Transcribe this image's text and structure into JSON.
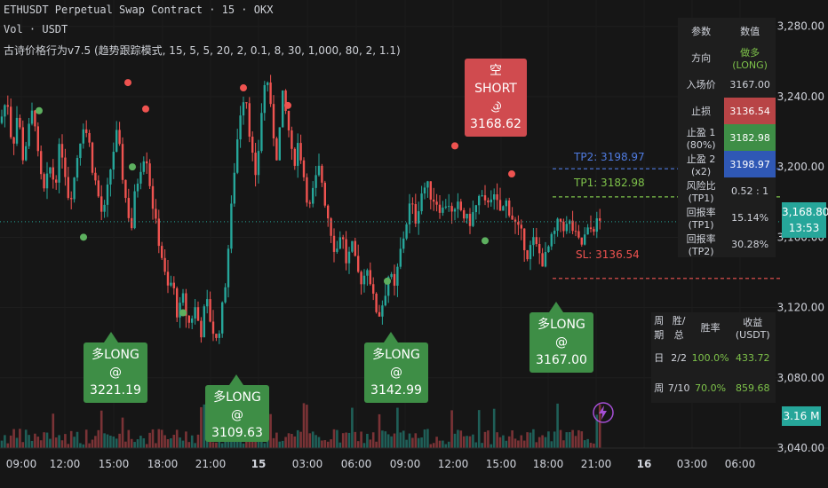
{
  "header": {
    "line1": "ETHUSDT Perpetual Swap Contract · 15 · OKX",
    "line2": "Vol · USDT",
    "line3": "古诗价格行为v7.5 (趋势跟踪模式, 15, 5, 5, 20, 2, 0.1, 8, 30, 1,000, 80, 2, 1.1)"
  },
  "signals": {
    "short": {
      "label": "空SHORT",
      "price": "@ 3168.62"
    },
    "long1": {
      "label": "多LONG",
      "price": "@ 3221.19"
    },
    "long2": {
      "label": "多LONG",
      "price": "@ 3109.63"
    },
    "long3": {
      "label": "多LONG",
      "price": "@ 3142.99"
    },
    "long4": {
      "label": "多LONG",
      "price": "@ 3167.00"
    }
  },
  "levels": {
    "tp2": "TP2: 3198.97",
    "tp1": "TP1: 3182.98",
    "sl": "SL: 3136.54"
  },
  "price_tag": {
    "price": "3,168.80",
    "countdown": "13:53"
  },
  "volume_tag": "3.16 M",
  "params_table": {
    "header": [
      "参数",
      "数值"
    ],
    "rows": [
      {
        "k": "方向",
        "v": "做多 (LONG)"
      },
      {
        "k": "入场价",
        "v": "3167.00"
      },
      {
        "k": "止损",
        "v": "3136.54"
      },
      {
        "k": "止盈 1 (80%)",
        "v": "3182.98"
      },
      {
        "k": "止盈 2 (x2)",
        "v": "3198.97"
      },
      {
        "k": "风险比 (TP1)",
        "v": "0.52 : 1"
      },
      {
        "k": "回报率 (TP1)",
        "v": "15.14%"
      },
      {
        "k": "回报率 (TP2)",
        "v": "30.28%"
      }
    ]
  },
  "stats_table": {
    "header": [
      "周期",
      "胜/总",
      "胜率",
      "收益 (USDT)"
    ],
    "rows": [
      {
        "p": "日",
        "w": "2/2",
        "r": "100.0%",
        "g": "433.72"
      },
      {
        "p": "周",
        "w": "7/10",
        "r": "70.0%",
        "g": "859.68"
      }
    ]
  },
  "colors": {
    "up": "#26a69a",
    "down": "#ef5350",
    "long": "#3e8e46",
    "short": "#d04b4f",
    "tp2": "#4f7be0",
    "tp1": "#7ec24a",
    "sl": "#ef5350",
    "last": "#26a69a"
  },
  "chart_data": {
    "type": "candlestick",
    "ylim": [
      3040,
      3295
    ],
    "y_ticks": [
      "3,280.00",
      "3,240.00",
      "3,200.00",
      "3,160.00",
      "3,120.00",
      "3,080.00",
      "3,040.00"
    ],
    "x_ticks": [
      "09:00",
      "12:00",
      "15:00",
      "18:00",
      "21:00",
      "15",
      "03:00",
      "06:00",
      "09:00",
      "12:00",
      "15:00",
      "18:00",
      "21:00",
      "16",
      "03:00",
      "06:00"
    ],
    "close_path": [
      [
        0,
        3225
      ],
      [
        8,
        3240
      ],
      [
        14,
        3210
      ],
      [
        20,
        3232
      ],
      [
        26,
        3205
      ],
      [
        32,
        3220
      ],
      [
        38,
        3235
      ],
      [
        44,
        3198
      ],
      [
        50,
        3185
      ],
      [
        56,
        3200
      ],
      [
        62,
        3190
      ],
      [
        68,
        3215
      ],
      [
        74,
        3195
      ],
      [
        78,
        3180
      ],
      [
        84,
        3195
      ],
      [
        88,
        3210
      ],
      [
        94,
        3225
      ],
      [
        100,
        3215
      ],
      [
        104,
        3200
      ],
      [
        110,
        3185
      ],
      [
        116,
        3170
      ],
      [
        122,
        3190
      ],
      [
        126,
        3205
      ],
      [
        132,
        3220
      ],
      [
        138,
        3195
      ],
      [
        142,
        3180
      ],
      [
        148,
        3165
      ],
      [
        152,
        3185
      ],
      [
        158,
        3200
      ],
      [
        164,
        3210
      ],
      [
        170,
        3185
      ],
      [
        176,
        3165
      ],
      [
        182,
        3150
      ],
      [
        188,
        3130
      ],
      [
        194,
        3135
      ],
      [
        200,
        3115
      ],
      [
        206,
        3125
      ],
      [
        212,
        3110
      ],
      [
        220,
        3120
      ],
      [
        226,
        3105
      ],
      [
        232,
        3125
      ],
      [
        238,
        3110
      ],
      [
        244,
        3100
      ],
      [
        252,
        3125
      ],
      [
        258,
        3160
      ],
      [
        264,
        3200
      ],
      [
        270,
        3230
      ],
      [
        276,
        3245
      ],
      [
        282,
        3215
      ],
      [
        288,
        3190
      ],
      [
        294,
        3230
      ],
      [
        300,
        3255
      ],
      [
        306,
        3225
      ],
      [
        312,
        3205
      ],
      [
        318,
        3240
      ],
      [
        324,
        3225
      ],
      [
        330,
        3200
      ],
      [
        336,
        3215
      ],
      [
        342,
        3195
      ],
      [
        348,
        3175
      ],
      [
        354,
        3190
      ],
      [
        360,
        3200
      ],
      [
        366,
        3180
      ],
      [
        372,
        3165
      ],
      [
        378,
        3150
      ],
      [
        384,
        3165
      ],
      [
        390,
        3145
      ],
      [
        396,
        3155
      ],
      [
        402,
        3140
      ],
      [
        408,
        3135
      ],
      [
        414,
        3145
      ],
      [
        420,
        3125
      ],
      [
        426,
        3115
      ],
      [
        432,
        3125
      ],
      [
        438,
        3140
      ],
      [
        444,
        3130
      ],
      [
        450,
        3150
      ],
      [
        456,
        3165
      ],
      [
        462,
        3180
      ],
      [
        468,
        3170
      ],
      [
        474,
        3185
      ],
      [
        480,
        3190
      ],
      [
        486,
        3183
      ],
      [
        492,
        3180
      ],
      [
        498,
        3175
      ],
      [
        504,
        3182
      ],
      [
        510,
        3170
      ],
      [
        516,
        3178
      ],
      [
        522,
        3172
      ],
      [
        528,
        3168
      ],
      [
        534,
        3175
      ],
      [
        540,
        3183
      ],
      [
        546,
        3178
      ],
      [
        552,
        3185
      ],
      [
        558,
        3180
      ],
      [
        564,
        3174
      ],
      [
        570,
        3180
      ],
      [
        576,
        3172
      ],
      [
        582,
        3165
      ],
      [
        588,
        3160
      ],
      [
        594,
        3150
      ],
      [
        600,
        3158
      ],
      [
        606,
        3152
      ],
      [
        612,
        3145
      ],
      [
        618,
        3155
      ],
      [
        624,
        3162
      ],
      [
        630,
        3170
      ],
      [
        636,
        3165
      ],
      [
        642,
        3168
      ],
      [
        648,
        3160
      ],
      [
        654,
        3155
      ],
      [
        660,
        3162
      ],
      [
        666,
        3165
      ],
      [
        672,
        3168
      ],
      [
        676,
        3168.8
      ]
    ],
    "last_price": 3168.8,
    "tp2": 3198.97,
    "tp1": 3182.98,
    "sl": 3136.54
  }
}
